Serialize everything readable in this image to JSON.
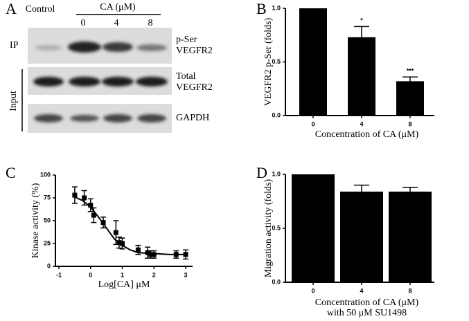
{
  "panel_labels": [
    "A",
    "B",
    "C",
    "D"
  ],
  "blot": {
    "lane_header": "Control",
    "group_label": "CA (μM)",
    "lanes": [
      "0",
      "4",
      "8"
    ],
    "ip_label": "IP",
    "input_label": "Input",
    "rows": [
      [
        "p-Ser",
        "VEGFR2"
      ],
      [
        "Total",
        "VEGFR2"
      ],
      [
        "GAPDH"
      ]
    ]
  },
  "chart_data": [
    {
      "type": "bar",
      "ylabel": "VEGFR2 p-Ser (folds)",
      "xlabel": [
        "Concentration of CA (μM)"
      ],
      "categories": [
        "0",
        "4",
        "8"
      ],
      "values": [
        1.0,
        0.73,
        0.32
      ],
      "errors": [
        null,
        0.1,
        0.04
      ],
      "annotations": [
        null,
        "*",
        "***"
      ],
      "color": "#000000",
      "ylim": [
        0,
        1.0
      ],
      "yticks": [
        {
          "value": 0,
          "label": "0.0"
        },
        0.5,
        {
          "value": 1,
          "label": "1.0"
        }
      ]
    },
    {
      "type": "scatter",
      "ylabel": "Kinase activity (%)",
      "xlabel": "Log[CA] μM",
      "x": [
        -0.5,
        -0.2,
        0,
        0.1,
        0.4,
        0.8,
        0.9,
        1.0,
        1.5,
        1.8,
        1.9,
        2.0,
        2.7,
        3.0
      ],
      "values": [
        78,
        75,
        67,
        56,
        48,
        37,
        26,
        25,
        18,
        15,
        13,
        13,
        13,
        13
      ],
      "errors": [
        9,
        8,
        7,
        8,
        6,
        13,
        6,
        6,
        5,
        6,
        4,
        4,
        4,
        5
      ],
      "curve": {
        "x": [
          -0.5,
          -0.25,
          0,
          0.25,
          0.5,
          0.75,
          1,
          1.25,
          1.5,
          2,
          2.5,
          3
        ],
        "y": [
          76,
          72,
          65,
          54,
          42,
          30,
          23,
          18,
          15,
          14,
          13,
          13
        ]
      },
      "color": "#000000",
      "xlim": [
        -1,
        3
      ],
      "xticks": [
        -1,
        0,
        1,
        2,
        3
      ],
      "ylim": [
        0,
        100
      ],
      "yticks": [
        0,
        25,
        50,
        75,
        100
      ]
    },
    {
      "type": "bar",
      "ylabel": "Migration activity (folds)",
      "xlabel": [
        "Concentration of CA (μM)",
        "with 50 μM SU1498"
      ],
      "categories": [
        "0",
        "4",
        "8"
      ],
      "values": [
        1.0,
        0.84,
        0.84
      ],
      "errors": [
        null,
        0.06,
        0.04
      ],
      "color": "#000000",
      "ylim": [
        0,
        1.0
      ],
      "yticks": [
        {
          "value": 0,
          "label": "0.0"
        },
        0.5,
        {
          "value": 1,
          "label": "1.0"
        }
      ]
    }
  ]
}
